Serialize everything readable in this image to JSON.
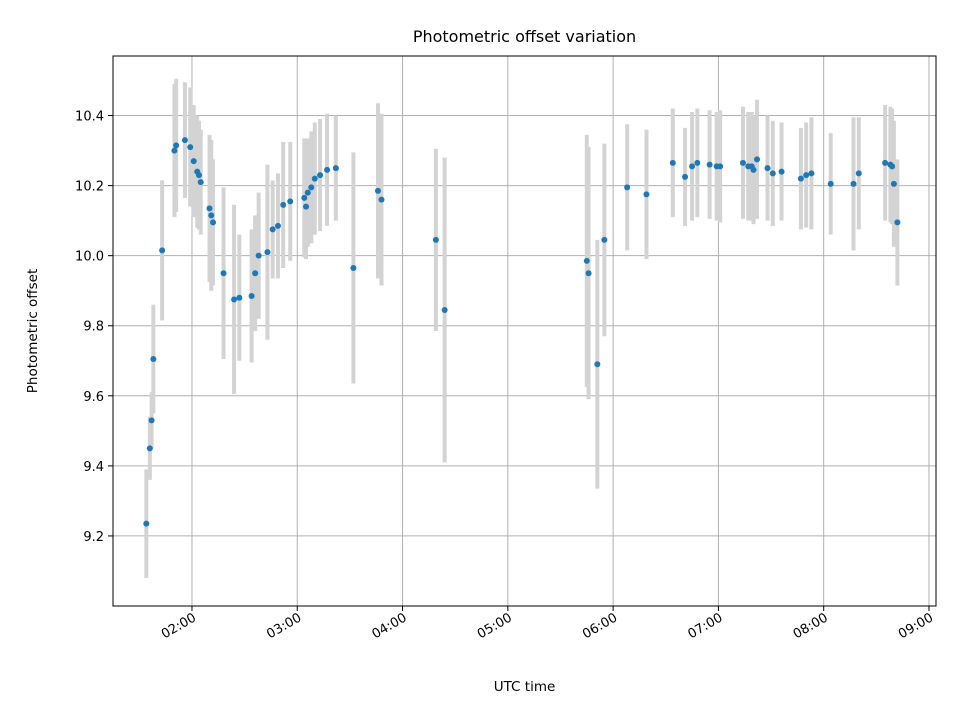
{
  "chart_data": {
    "type": "scatter",
    "title": "Photometric offset variation",
    "xlabel": "UTC time",
    "ylabel": "Photometric offset",
    "xlim": [
      "01:15",
      "09:04"
    ],
    "ylim": [
      9.0,
      10.57
    ],
    "x_ticks": [
      "02:00",
      "03:00",
      "04:00",
      "05:00",
      "06:00",
      "07:00",
      "08:00",
      "09:00"
    ],
    "y_ticks": [
      "9.2",
      "9.4",
      "9.6",
      "9.8",
      "10.0",
      "10.2",
      "10.4"
    ],
    "grid": true,
    "colors": {
      "points": "#1f77b4",
      "error_bars": "#d3d3d3",
      "grid": "#b0b0b0"
    },
    "series": [
      {
        "x": [
          "01:34",
          "01:36",
          "01:37",
          "01:38",
          "01:43",
          "01:50",
          "01:51",
          "01:56",
          "01:59",
          "02:01",
          "02:03",
          "02:04",
          "02:05",
          "02:10",
          "02:11",
          "02:12",
          "02:18",
          "02:24",
          "02:27",
          "02:34",
          "02:36",
          "02:38",
          "02:43",
          "02:46",
          "02:49",
          "02:52",
          "02:56",
          "03:04",
          "03:05",
          "03:06",
          "03:08",
          "03:10",
          "03:13",
          "03:17",
          "03:22",
          "03:32",
          "03:46",
          "03:48",
          "04:19",
          "04:24",
          "05:45",
          "05:46",
          "05:51",
          "05:55",
          "06:08",
          "06:19",
          "06:34",
          "06:41",
          "06:45",
          "06:48",
          "06:55",
          "06:59",
          "07:01",
          "07:14",
          "07:17",
          "07:19",
          "07:20",
          "07:22",
          "07:28",
          "07:31",
          "07:36",
          "07:47",
          "07:50",
          "07:53",
          "08:04",
          "08:17",
          "08:20",
          "08:35",
          "08:38",
          "08:39",
          "08:40",
          "08:42"
        ],
        "y": [
          9.235,
          9.45,
          9.53,
          9.705,
          10.015,
          10.3,
          10.315,
          10.33,
          10.31,
          10.27,
          10.24,
          10.23,
          10.21,
          10.135,
          10.115,
          10.095,
          9.95,
          9.875,
          9.88,
          9.885,
          9.95,
          10.0,
          10.01,
          10.075,
          10.085,
          10.145,
          10.155,
          10.165,
          10.14,
          10.18,
          10.195,
          10.22,
          10.23,
          10.245,
          10.25,
          9.965,
          10.185,
          10.16,
          10.045,
          9.845,
          9.985,
          9.95,
          9.69,
          10.045,
          10.195,
          10.175,
          10.265,
          10.225,
          10.255,
          10.265,
          10.26,
          10.255,
          10.255,
          10.265,
          10.255,
          10.255,
          10.245,
          10.275,
          10.25,
          10.235,
          10.24,
          10.22,
          10.23,
          10.235,
          10.205,
          10.205,
          10.235,
          10.265,
          10.26,
          10.255,
          10.205,
          10.095
        ],
        "err": [
          0.155,
          0.09,
          0.08,
          0.155,
          0.2,
          0.19,
          0.19,
          0.165,
          0.17,
          0.16,
          0.16,
          0.155,
          0.15,
          0.21,
          0.215,
          0.18,
          0.245,
          0.27,
          0.18,
          0.19,
          0.165,
          0.18,
          0.25,
          0.14,
          0.15,
          0.18,
          0.17,
          0.17,
          0.15,
          0.155,
          0.16,
          0.16,
          0.16,
          0.16,
          0.15,
          0.33,
          0.25,
          0.245,
          0.26,
          0.435,
          0.36,
          0.36,
          0.355,
          0.275,
          0.18,
          0.185,
          0.155,
          0.14,
          0.155,
          0.155,
          0.155,
          0.155,
          0.16,
          0.16,
          0.155,
          0.155,
          0.155,
          0.17,
          0.15,
          0.15,
          0.14,
          0.145,
          0.15,
          0.16,
          0.145,
          0.19,
          0.16,
          0.165,
          0.165,
          0.165,
          0.18,
          0.18
        ]
      }
    ]
  }
}
